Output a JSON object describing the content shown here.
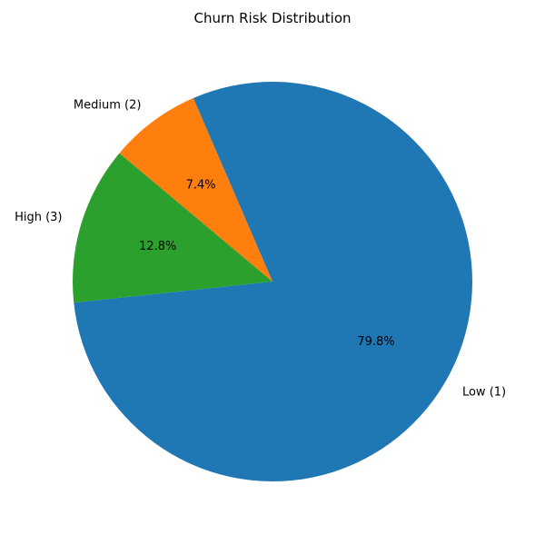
{
  "chart_data": {
    "type": "pie",
    "title": "Churn Risk Distribution",
    "start_angle_deg": 140,
    "direction": "counterclockwise",
    "slices": [
      {
        "label": "High (3)",
        "value": 12.8,
        "pct_label": "12.8%",
        "color": "#2ca02c"
      },
      {
        "label": "Low (1)",
        "value": 79.8,
        "pct_label": "79.8%",
        "color": "#1f77b4"
      },
      {
        "label": "Medium (2)",
        "value": 7.4,
        "pct_label": "7.4%",
        "color": "#ff7f0e"
      }
    ]
  }
}
